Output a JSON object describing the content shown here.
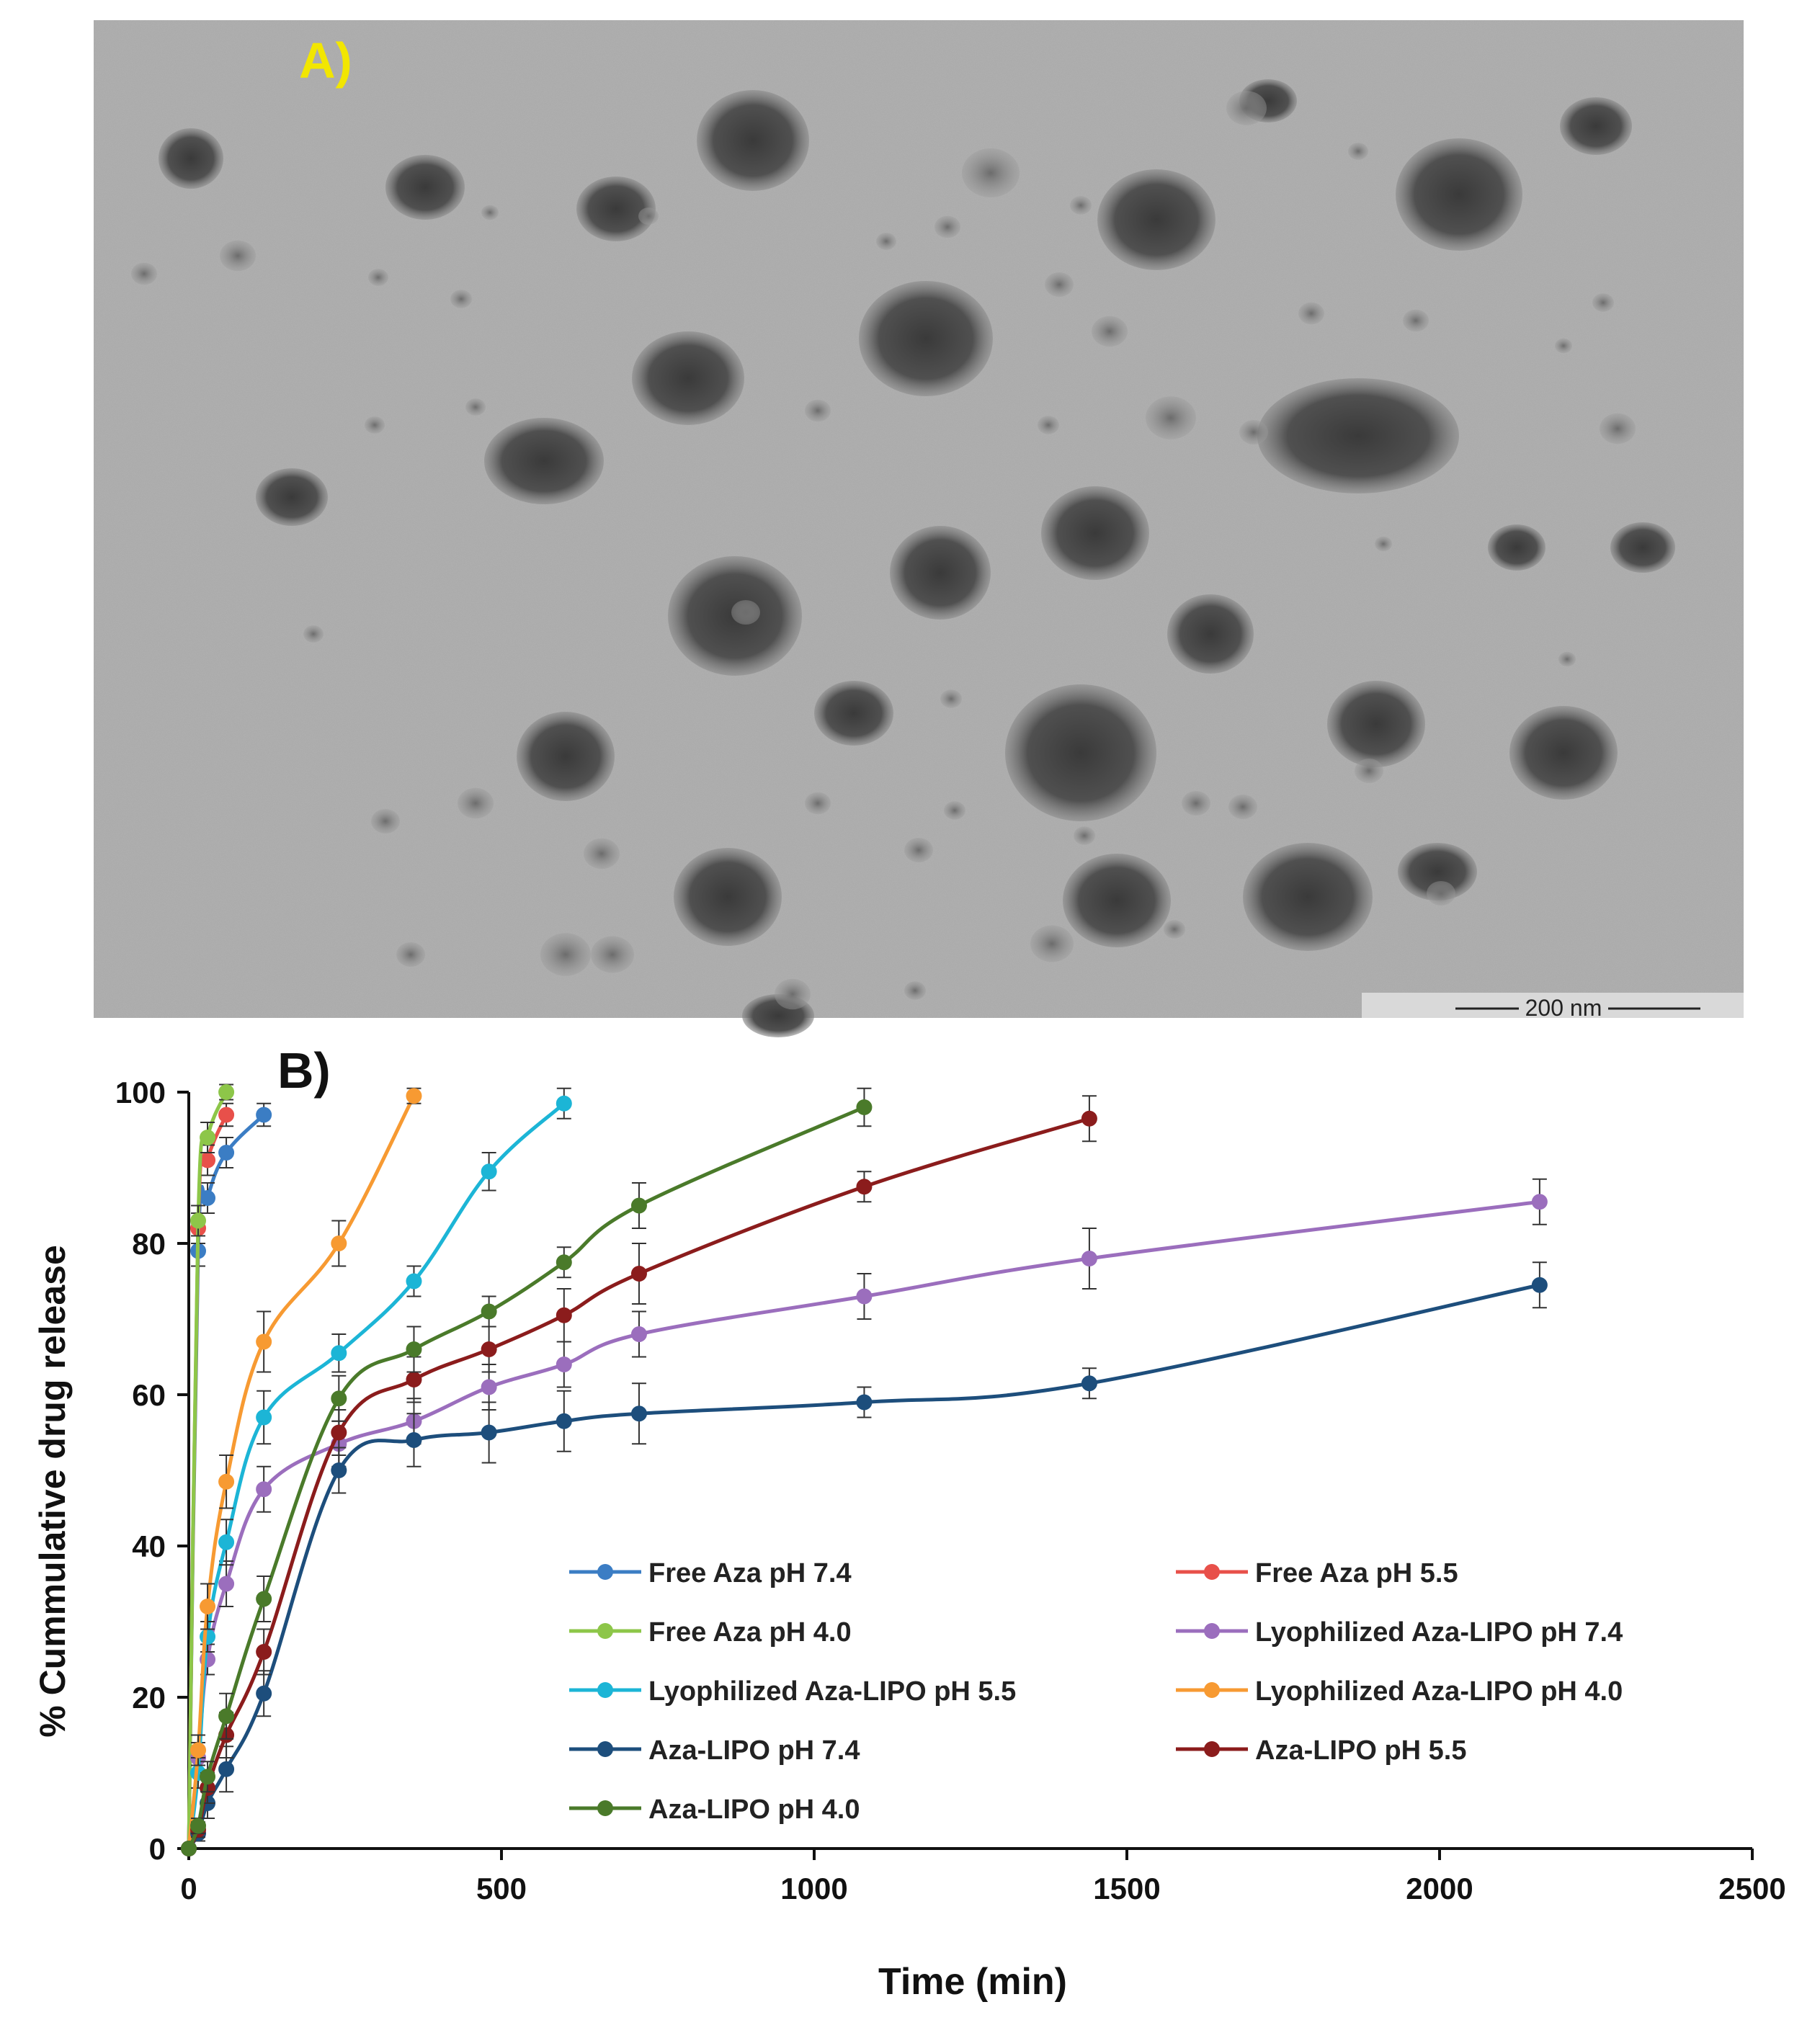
{
  "figure": {
    "panel_a": {
      "label": "A)",
      "label_color": "#f2e600",
      "scale_bar_text": "200 nm",
      "image_description_icon": "tem-micrograph"
    },
    "panel_b": {
      "label": "B)"
    }
  },
  "chart_data": {
    "type": "line",
    "xlabel": "Time (min)",
    "ylabel": "% Cummulative drug release",
    "xlim": [
      0,
      2500
    ],
    "ylim": [
      0,
      100
    ],
    "x_ticks": [
      "0",
      "500",
      "1000",
      "1500",
      "2000",
      "2500"
    ],
    "y_ticks": [
      "0",
      "20",
      "40",
      "60",
      "80",
      "100"
    ],
    "grid": false,
    "legend_position": "lower-center-right",
    "error_bars": true,
    "series": [
      {
        "name": "Free Aza pH 7.4",
        "color": "#3b7dc4",
        "x": [
          0,
          15,
          30,
          60,
          120
        ],
        "y": [
          0,
          79,
          86,
          92,
          97
        ],
        "err": [
          0,
          2,
          2,
          2,
          1.5
        ]
      },
      {
        "name": "Free Aza pH 5.5",
        "color": "#e8504a",
        "x": [
          0,
          15,
          30,
          60
        ],
        "y": [
          0,
          82,
          91,
          97
        ],
        "err": [
          0,
          2,
          2,
          1.5
        ]
      },
      {
        "name": "Free Aza pH 4.0",
        "color": "#8dc649",
        "x": [
          0,
          15,
          30,
          60
        ],
        "y": [
          0,
          83,
          94,
          100
        ],
        "err": [
          0,
          2,
          2,
          1
        ]
      },
      {
        "name": "Lyophilized Aza-LIPO pH 7.4",
        "color": "#9b6ebd",
        "x": [
          0,
          15,
          30,
          60,
          120,
          240,
          360,
          480,
          600,
          720,
          1080,
          1440,
          2160
        ],
        "y": [
          0,
          12,
          25,
          35,
          47.5,
          53.5,
          56.5,
          61,
          64,
          68,
          73,
          78,
          85.5
        ],
        "err": [
          0,
          2,
          2,
          3,
          3,
          3,
          3,
          3,
          3,
          3,
          3,
          4,
          3
        ]
      },
      {
        "name": "Lyophilized Aza-LIPO pH 5.5",
        "color": "#1cb5d6",
        "x": [
          0,
          15,
          30,
          60,
          120,
          240,
          360,
          480,
          600
        ],
        "y": [
          0,
          10,
          28,
          40.5,
          57,
          65.5,
          75,
          89.5,
          98.5
        ],
        "err": [
          0,
          2,
          2,
          3,
          3.5,
          2.5,
          2,
          2.5,
          2
        ]
      },
      {
        "name": "Lyophilized Aza-LIPO pH 4.0",
        "color": "#f79a32",
        "x": [
          0,
          15,
          30,
          60,
          120,
          240,
          360
        ],
        "y": [
          0,
          13,
          32,
          48.5,
          67,
          80,
          99.5
        ],
        "err": [
          0,
          2,
          3,
          3.5,
          4,
          3,
          1
        ]
      },
      {
        "name": "Aza-LIPO pH 7.4",
        "color": "#1d4e7c",
        "x": [
          0,
          15,
          30,
          60,
          120,
          240,
          360,
          480,
          600,
          720,
          1080,
          1440,
          2160
        ],
        "y": [
          0,
          2,
          6,
          10.5,
          20.5,
          50,
          54,
          55,
          56.5,
          57.5,
          59,
          61.5,
          74.5
        ],
        "err": [
          0,
          1,
          2,
          3,
          3,
          3,
          3.5,
          4,
          4,
          4,
          2,
          2,
          3
        ]
      },
      {
        "name": "Aza-LIPO pH 5.5",
        "color": "#8b1c1c",
        "x": [
          0,
          15,
          30,
          60,
          120,
          240,
          360,
          480,
          600,
          720,
          1080,
          1440
        ],
        "y": [
          0,
          2.5,
          8,
          15,
          26,
          55,
          62,
          66,
          70.5,
          76,
          87.5,
          96.5
        ],
        "err": [
          0,
          1,
          2,
          3,
          3,
          3,
          3,
          3,
          3.5,
          4,
          2,
          3
        ]
      },
      {
        "name": "Aza-LIPO pH 4.0",
        "color": "#4a7a2a",
        "x": [
          0,
          15,
          30,
          60,
          120,
          240,
          360,
          480,
          600,
          720,
          1080
        ],
        "y": [
          0,
          3,
          9.5,
          17.5,
          33,
          59.5,
          66,
          71,
          77.5,
          85,
          98
        ],
        "err": [
          0,
          1,
          2,
          3,
          3,
          3,
          3,
          2,
          2,
          3,
          2.5
        ]
      }
    ]
  }
}
